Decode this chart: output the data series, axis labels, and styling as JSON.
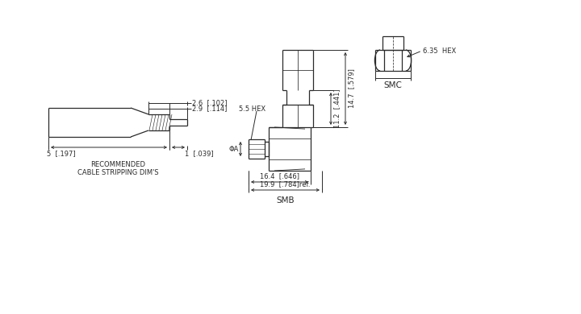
{
  "bg_color": "#ffffff",
  "line_color": "#2a2a2a",
  "lw": 0.9,
  "dlw": 0.7,
  "fs": 6.0,
  "fs_label": 7.5,
  "label_SMC": "SMC",
  "label_SMB": "SMB",
  "label_hex_smc": "6.35  HEX",
  "label_hex_smb": "5.5 HEX",
  "label_dim1": "2.6  [.102]",
  "label_dim2": "2.9  [.114]",
  "label_dim3": "5  [.197]",
  "label_dim4": "1  [.039]",
  "label_dim5": "16.4  [.646]",
  "label_dim6": "19.9  [.784]ref.",
  "label_dim7": "11.2  [.441]",
  "label_dim8": "14.7  [.579]",
  "label_phiA": "ΦA",
  "label_cable": "RECOMMENDED\nCABLE STRIPPING DIM'S"
}
